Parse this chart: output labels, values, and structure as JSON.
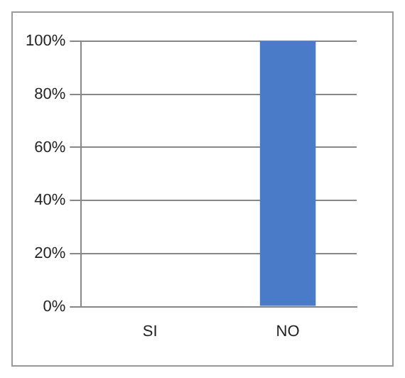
{
  "chart_data": {
    "type": "bar",
    "categories": [
      "SI",
      "NO"
    ],
    "values": [
      0,
      100
    ],
    "color": "#4a7bc8",
    "ylim": [
      0,
      100
    ],
    "yticks": [
      {
        "value": 0,
        "label": "0%"
      },
      {
        "value": 20,
        "label": "20%"
      },
      {
        "value": 40,
        "label": "40%"
      },
      {
        "value": 60,
        "label": "60%"
      },
      {
        "value": 80,
        "label": "80%"
      },
      {
        "value": 100,
        "label": "100%"
      }
    ],
    "grid": "y",
    "legend": false
  }
}
